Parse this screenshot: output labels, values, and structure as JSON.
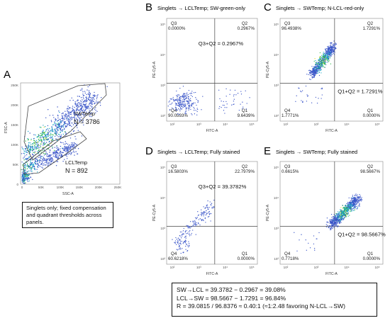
{
  "panelA": {
    "label": "A",
    "y_axis": "FSC-A",
    "x_axis": "SSC-A",
    "y_ticks": [
      "250K",
      "200K",
      "150K",
      "100K",
      "50K",
      "0"
    ],
    "x_ticks": [
      "0",
      "50K",
      "100K",
      "150K",
      "200K",
      "250K"
    ],
    "gate_sw_name": "SWTemp",
    "gate_sw_count": "N = 3786",
    "gate_lcl_name": "LCLTemp",
    "gate_lcl_count": "N = 892"
  },
  "note": "Singlets only; fixed compensation and quadrant thresholds across panels.",
  "panels": [
    {
      "label": "B",
      "title": "Singlets → LCLTemp; SW-green-only",
      "q3_name": "Q3",
      "q3": "0.0000%",
      "q2_name": "Q2",
      "q2": "0.2967%",
      "q4_name": "Q4",
      "q4": "90.0593%",
      "q1_name": "Q1",
      "q1": "9.6439%",
      "sum": "Q3+Q2 = 0.2967%",
      "x_axis": "FITC-A",
      "y_axis": "PE-Cy5-A",
      "cluster": "lower-left"
    },
    {
      "label": "C",
      "title": "Singlets → SWTemp; N-LCL-red-only",
      "q3_name": "Q3",
      "q3": "96.4938%",
      "q2_name": "Q2",
      "q2": "1.7291%",
      "q4_name": "Q4",
      "q4": "1.7771%",
      "q1_name": "Q1",
      "q1": "0.0000%",
      "sum": "Q1+Q2 = 1.7291%",
      "x_axis": "FITC-A",
      "y_axis": "PE-Cy5-A",
      "cluster": "upper-left"
    },
    {
      "label": "D",
      "title": "Singlets → LCLTemp; Fully stained",
      "q3_name": "Q3",
      "q3": "16.5803%",
      "q2_name": "Q2",
      "q2": "22.7979%",
      "q4_name": "Q4",
      "q4": "60.6218%",
      "q1_name": "Q1",
      "q1": "0.0000%",
      "sum": "Q3+Q2 = 39.3782%",
      "x_axis": "FITC-A",
      "y_axis": "PE-Cy5-A",
      "cluster": "sparse-diagonal"
    },
    {
      "label": "E",
      "title": "Singlets → SWTemp; Fully stained",
      "q3_name": "Q3",
      "q3": "0.6615%",
      "q2_name": "Q2",
      "q2": "98.5667%",
      "q4_name": "Q4",
      "q4": "0.7718%",
      "q1_name": "Q1",
      "q1": "0.0000%",
      "sum": "Q1+Q2 = 98.5667%",
      "x_axis": "FITC-A",
      "y_axis": "PE-Cy5-A",
      "cluster": "upper-right"
    }
  ],
  "flow_ticks_x": [
    "10²",
    "10³",
    "10⁴",
    "10⁵"
  ],
  "flow_ticks_y": [
    "10⁵",
    "10⁴",
    "10³",
    "10²"
  ],
  "results": {
    "line1": "SW→LCL = 39.3782 − 0.2967 = 39.08%",
    "line2": "LCL→SW = 98.5667 − 1.7291 = 96.84%",
    "line3": "R = 39.0815 / 96.8376 ≈ 0.40:1 (≈1:2.48 favoring N-LCL→SW)"
  },
  "colors": {
    "dot_low": "#3a55c8",
    "dot_mid": "#1fa8c9",
    "dot_high": "#2eb84a",
    "dot_peak": "#e5e03a",
    "frame": "#888888",
    "gate": "#444444"
  }
}
